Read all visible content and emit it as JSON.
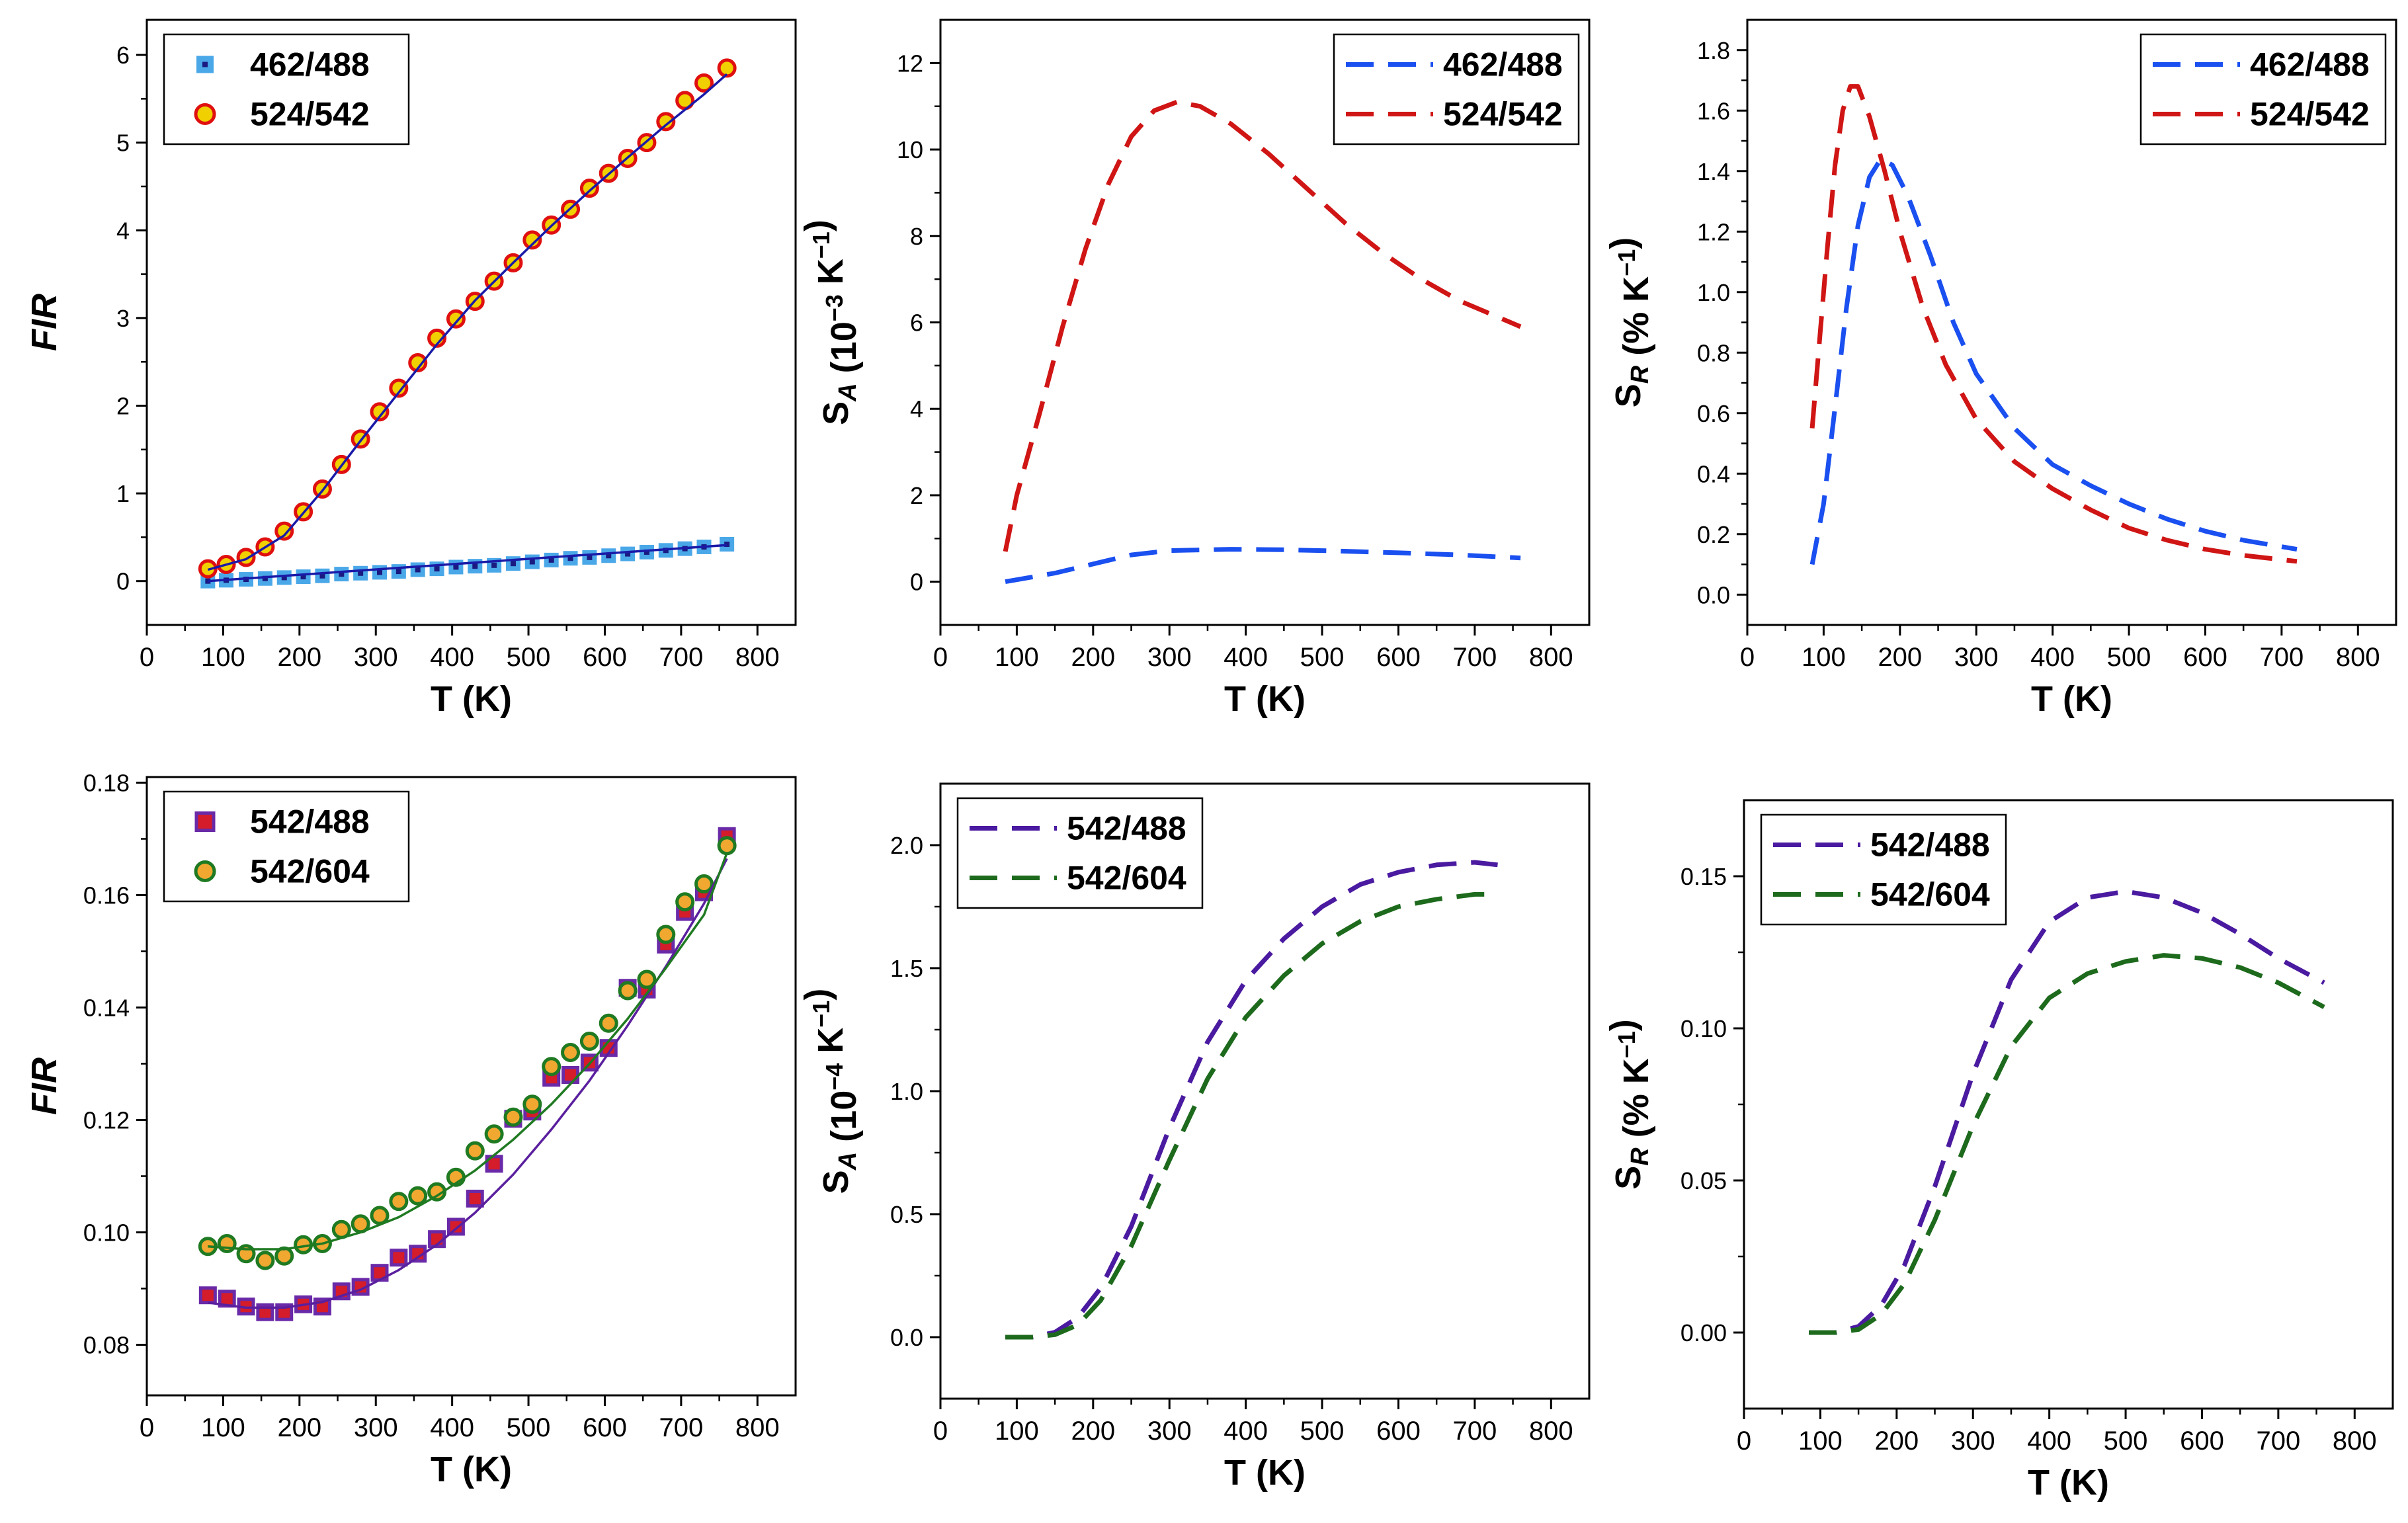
{
  "chart_data": [
    {
      "id": "a",
      "type": "scatter",
      "xlabel": "T (K)",
      "ylabel": "FIR",
      "xlim": [
        0,
        850
      ],
      "ylim": [
        -0.5,
        6.4
      ],
      "xticks": [
        0,
        100,
        200,
        300,
        400,
        500,
        600,
        700,
        800
      ],
      "yticks": [
        0,
        1,
        2,
        3,
        4,
        5,
        6
      ],
      "legend_position": "top-left",
      "series": [
        {
          "name": "462/488",
          "marker": "square",
          "color": "#4aa8e8",
          "fit_color": "#1a1aa8",
          "x": [
            80,
            104,
            130,
            155,
            180,
            205,
            230,
            255,
            280,
            305,
            330,
            355,
            380,
            405,
            430,
            455,
            480,
            505,
            530,
            555,
            580,
            605,
            630,
            655,
            680,
            705,
            730,
            760
          ],
          "y": [
            0.0,
            0.01,
            0.02,
            0.03,
            0.04,
            0.05,
            0.06,
            0.08,
            0.09,
            0.1,
            0.11,
            0.13,
            0.14,
            0.16,
            0.17,
            0.18,
            0.2,
            0.22,
            0.24,
            0.26,
            0.27,
            0.29,
            0.31,
            0.33,
            0.35,
            0.37,
            0.39,
            0.42
          ],
          "fit": [
            [
              80,
              0.0
            ],
            [
              760,
              0.41
            ]
          ]
        },
        {
          "name": "524/542",
          "marker": "circle",
          "color": "#f0d000",
          "edge_color": "#e01010",
          "fit_color": "#1a1aa8",
          "x": [
            80,
            104,
            130,
            155,
            180,
            205,
            230,
            255,
            280,
            305,
            330,
            355,
            380,
            405,
            430,
            455,
            480,
            505,
            530,
            555,
            580,
            605,
            630,
            655,
            680,
            705,
            730,
            760
          ],
          "y": [
            0.14,
            0.19,
            0.27,
            0.39,
            0.57,
            0.79,
            1.05,
            1.33,
            1.62,
            1.93,
            2.2,
            2.49,
            2.77,
            2.99,
            3.19,
            3.42,
            3.63,
            3.89,
            4.06,
            4.24,
            4.48,
            4.65,
            4.82,
            5.0,
            5.24,
            5.48,
            5.68,
            5.85
          ],
          "fit": [
            [
              80,
              0.13
            ],
            [
              130,
              0.25
            ],
            [
              180,
              0.52
            ],
            [
              230,
              1.03
            ],
            [
              280,
              1.6
            ],
            [
              330,
              2.15
            ],
            [
              380,
              2.7
            ],
            [
              430,
              3.2
            ],
            [
              480,
              3.63
            ],
            [
              530,
              4.05
            ],
            [
              580,
              4.45
            ],
            [
              630,
              4.83
            ],
            [
              680,
              5.2
            ],
            [
              730,
              5.55
            ],
            [
              760,
              5.78
            ]
          ]
        }
      ]
    },
    {
      "id": "b",
      "type": "line",
      "xlabel": "T (K)",
      "ylabel": "S_A (10^-3 K^-1)",
      "xlim": [
        0,
        850
      ],
      "ylim": [
        -1,
        13
      ],
      "xticks": [
        0,
        100,
        200,
        300,
        400,
        500,
        600,
        700,
        800
      ],
      "yticks": [
        0,
        2,
        4,
        6,
        8,
        10,
        12
      ],
      "legend_position": "top-right",
      "line_style": "dashed",
      "series": [
        {
          "name": "462/488",
          "color": "#1a4ff0",
          "x": [
            85,
            150,
            250,
            300,
            380,
            450,
            520,
            600,
            680,
            760
          ],
          "y": [
            0.0,
            0.2,
            0.62,
            0.72,
            0.75,
            0.74,
            0.71,
            0.67,
            0.62,
            0.55
          ]
        },
        {
          "name": "524/542",
          "color": "#d01515",
          "x": [
            85,
            100,
            130,
            160,
            190,
            220,
            250,
            280,
            310,
            340,
            380,
            430,
            480,
            530,
            580,
            630,
            680,
            720,
            760
          ],
          "y": [
            0.7,
            2.0,
            3.9,
            5.9,
            7.7,
            9.2,
            10.3,
            10.9,
            11.1,
            11.0,
            10.6,
            9.9,
            9.1,
            8.3,
            7.6,
            7.0,
            6.5,
            6.2,
            5.9
          ]
        }
      ]
    },
    {
      "id": "c",
      "type": "line",
      "xlabel": "T (K)",
      "ylabel": "S_R (% K^-1)",
      "xlim": [
        0,
        850
      ],
      "ylim": [
        -0.1,
        1.9
      ],
      "xticks": [
        0,
        100,
        200,
        300,
        400,
        500,
        600,
        700,
        800
      ],
      "yticks": [
        0.0,
        0.2,
        0.4,
        0.6,
        0.8,
        1.0,
        1.2,
        1.4,
        1.6,
        1.8
      ],
      "legend_position": "top-right",
      "line_style": "dashed",
      "series": [
        {
          "name": "462/488",
          "color": "#1a4ff0",
          "x": [
            85,
            100,
            115,
            130,
            145,
            160,
            175,
            190,
            210,
            240,
            270,
            300,
            350,
            400,
            450,
            500,
            550,
            600,
            650,
            720
          ],
          "y": [
            0.1,
            0.3,
            0.62,
            0.95,
            1.22,
            1.38,
            1.44,
            1.42,
            1.32,
            1.12,
            0.9,
            0.73,
            0.55,
            0.43,
            0.36,
            0.3,
            0.25,
            0.21,
            0.18,
            0.15
          ]
        },
        {
          "name": "524/542",
          "color": "#d01515",
          "x": [
            85,
            95,
            105,
            115,
            125,
            135,
            145,
            160,
            180,
            200,
            230,
            260,
            300,
            350,
            400,
            450,
            500,
            550,
            600,
            650,
            720
          ],
          "y": [
            0.55,
            0.85,
            1.15,
            1.42,
            1.6,
            1.68,
            1.68,
            1.58,
            1.4,
            1.2,
            0.95,
            0.76,
            0.58,
            0.44,
            0.35,
            0.28,
            0.22,
            0.18,
            0.15,
            0.13,
            0.11
          ]
        }
      ]
    },
    {
      "id": "d",
      "type": "scatter",
      "xlabel": "T (K)",
      "ylabel": "FIR",
      "xlim": [
        0,
        850
      ],
      "ylim": [
        0.071,
        0.181
      ],
      "xticks": [
        0,
        100,
        200,
        300,
        400,
        500,
        600,
        700,
        800
      ],
      "yticks": [
        0.08,
        0.1,
        0.12,
        0.14,
        0.16,
        0.18
      ],
      "legend_position": "top-left",
      "series": [
        {
          "name": "542/488",
          "marker": "square",
          "color": "#d41c2a",
          "edge_color": "#6a2aa8",
          "fit_color": "#5a1f9e",
          "x": [
            80,
            105,
            130,
            155,
            180,
            205,
            230,
            255,
            280,
            305,
            330,
            355,
            380,
            405,
            430,
            455,
            480,
            505,
            530,
            555,
            580,
            605,
            630,
            655,
            680,
            705,
            730,
            760
          ],
          "y": [
            0.0888,
            0.0882,
            0.0868,
            0.0858,
            0.0858,
            0.0872,
            0.0868,
            0.0895,
            0.0903,
            0.0928,
            0.0955,
            0.0962,
            0.0988,
            0.101,
            0.106,
            0.1122,
            0.1202,
            0.1215,
            0.1275,
            0.128,
            0.1302,
            0.1328,
            0.1435,
            0.1432,
            0.1512,
            0.157,
            0.1605,
            0.1705
          ],
          "fit": [
            [
              80,
              0.0875
            ],
            [
              130,
              0.0866
            ],
            [
              180,
              0.0866
            ],
            [
              230,
              0.0876
            ],
            [
              280,
              0.0898
            ],
            [
              330,
              0.0933
            ],
            [
              380,
              0.0978
            ],
            [
              430,
              0.1035
            ],
            [
              480,
              0.1103
            ],
            [
              530,
              0.1183
            ],
            [
              580,
              0.127
            ],
            [
              630,
              0.1368
            ],
            [
              680,
              0.1473
            ],
            [
              730,
              0.1585
            ],
            [
              760,
              0.1665
            ]
          ]
        },
        {
          "name": "542/604",
          "marker": "circle",
          "color": "#f0a830",
          "edge_color": "#1f7a22",
          "fit_color": "#1f7a22",
          "x": [
            80,
            105,
            130,
            155,
            180,
            205,
            230,
            255,
            280,
            305,
            330,
            355,
            380,
            405,
            430,
            455,
            480,
            505,
            530,
            555,
            580,
            605,
            630,
            655,
            680,
            705,
            730,
            760
          ],
          "y": [
            0.0975,
            0.098,
            0.0962,
            0.095,
            0.0958,
            0.0978,
            0.098,
            0.1005,
            0.1015,
            0.103,
            0.1055,
            0.1065,
            0.1072,
            0.1098,
            0.1145,
            0.1175,
            0.1205,
            0.1228,
            0.1295,
            0.132,
            0.134,
            0.1372,
            0.143,
            0.145,
            0.153,
            0.1588,
            0.162,
            0.1688
          ],
          "fit": [
            [
              80,
              0.0975
            ],
            [
              130,
              0.097
            ],
            [
              180,
              0.097
            ],
            [
              230,
              0.098
            ],
            [
              280,
              0.1
            ],
            [
              330,
              0.1027
            ],
            [
              380,
              0.1065
            ],
            [
              430,
              0.111
            ],
            [
              480,
              0.1165
            ],
            [
              530,
              0.1228
            ],
            [
              580,
              0.13
            ],
            [
              630,
              0.138
            ],
            [
              680,
              0.147
            ],
            [
              730,
              0.1565
            ],
            [
              760,
              0.1675
            ]
          ]
        }
      ]
    },
    {
      "id": "e",
      "type": "line",
      "xlabel": "T (K)",
      "ylabel": "S_A (10^-4 K^-1)",
      "xlim": [
        0,
        850
      ],
      "ylim": [
        -0.25,
        2.25
      ],
      "xticks": [
        0,
        100,
        200,
        300,
        400,
        500,
        600,
        700,
        800
      ],
      "yticks": [
        0.0,
        0.5,
        1.0,
        1.5,
        2.0
      ],
      "legend_position": "top-left",
      "line_style": "dashed",
      "series": [
        {
          "name": "542/488",
          "color": "#4a1aa0",
          "x": [
            85,
            120,
            150,
            180,
            210,
            250,
            300,
            350,
            400,
            450,
            500,
            550,
            600,
            650,
            700,
            730
          ],
          "y": [
            0.0,
            0.0,
            0.02,
            0.08,
            0.2,
            0.45,
            0.85,
            1.2,
            1.45,
            1.62,
            1.75,
            1.84,
            1.89,
            1.92,
            1.93,
            1.92
          ]
        },
        {
          "name": "542/604",
          "color": "#1d6a1d",
          "x": [
            85,
            120,
            150,
            180,
            210,
            250,
            300,
            350,
            400,
            450,
            500,
            550,
            600,
            650,
            700,
            730
          ],
          "y": [
            0.0,
            0.0,
            0.01,
            0.05,
            0.15,
            0.37,
            0.72,
            1.05,
            1.3,
            1.47,
            1.6,
            1.69,
            1.75,
            1.78,
            1.8,
            1.8
          ]
        }
      ]
    },
    {
      "id": "f",
      "type": "line",
      "xlabel": "T (K)",
      "ylabel": "S_R (% K^-1)",
      "xlim": [
        0,
        850
      ],
      "ylim": [
        -0.025,
        0.175
      ],
      "xticks": [
        0,
        100,
        200,
        300,
        400,
        500,
        600,
        700,
        800
      ],
      "yticks": [
        0.0,
        0.05,
        0.1,
        0.15
      ],
      "legend_position": "top-left",
      "line_style": "dashed",
      "series": [
        {
          "name": "542/488",
          "color": "#4a1aa0",
          "x": [
            85,
            120,
            150,
            180,
            210,
            250,
            300,
            350,
            400,
            450,
            500,
            550,
            600,
            650,
            700,
            760
          ],
          "y": [
            0.0,
            0.0,
            0.002,
            0.009,
            0.022,
            0.048,
            0.085,
            0.116,
            0.135,
            0.143,
            0.145,
            0.143,
            0.138,
            0.131,
            0.123,
            0.115
          ]
        },
        {
          "name": "542/604",
          "color": "#1d6a1d",
          "x": [
            85,
            120,
            150,
            180,
            210,
            250,
            300,
            350,
            400,
            450,
            500,
            550,
            600,
            650,
            700,
            760
          ],
          "y": [
            0.0,
            0.0,
            0.001,
            0.006,
            0.016,
            0.037,
            0.068,
            0.094,
            0.11,
            0.118,
            0.122,
            0.124,
            0.123,
            0.12,
            0.115,
            0.107
          ]
        }
      ]
    }
  ]
}
